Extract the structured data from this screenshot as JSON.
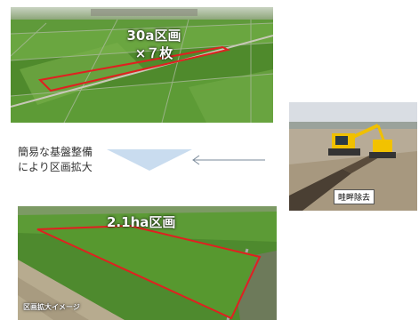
{
  "top_photo": {
    "label_line1": "30a区画",
    "label_line2": "×７枚"
  },
  "middle_text": {
    "line1": "簡易な基盤整備",
    "line2": "により区画拡大"
  },
  "right_photo": {
    "caption": "畦畔除去"
  },
  "bottom_photo": {
    "label": "2.1ha区画",
    "caption": "区画拡大イメージ"
  },
  "colors": {
    "field_green": "#4e8a2e",
    "outline_red": "#e02020",
    "arrow_blue": "#c9dcef"
  }
}
